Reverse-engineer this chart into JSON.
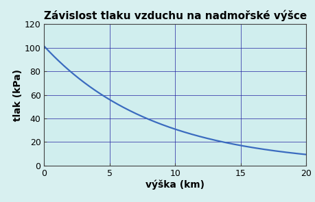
{
  "title": "Závislost tlaku vzduchu na nadmořské výšce",
  "xlabel": "výška (km)",
  "ylabel": "tlak (kPa)",
  "xlim": [
    0,
    20
  ],
  "ylim": [
    0,
    120
  ],
  "xticks": [
    0,
    5,
    10,
    15,
    20
  ],
  "yticks": [
    0,
    20,
    40,
    60,
    80,
    100,
    120
  ],
  "line_color": "#3a6bbf",
  "background_color": "#d8f0f0",
  "axes_bg_color": "#d0eeee",
  "grid_color": "#2020a0",
  "title_fontsize": 11,
  "label_fontsize": 10,
  "tick_fontsize": 9,
  "line_width": 1.6,
  "p0": 101.325,
  "scale_height": 8.43
}
